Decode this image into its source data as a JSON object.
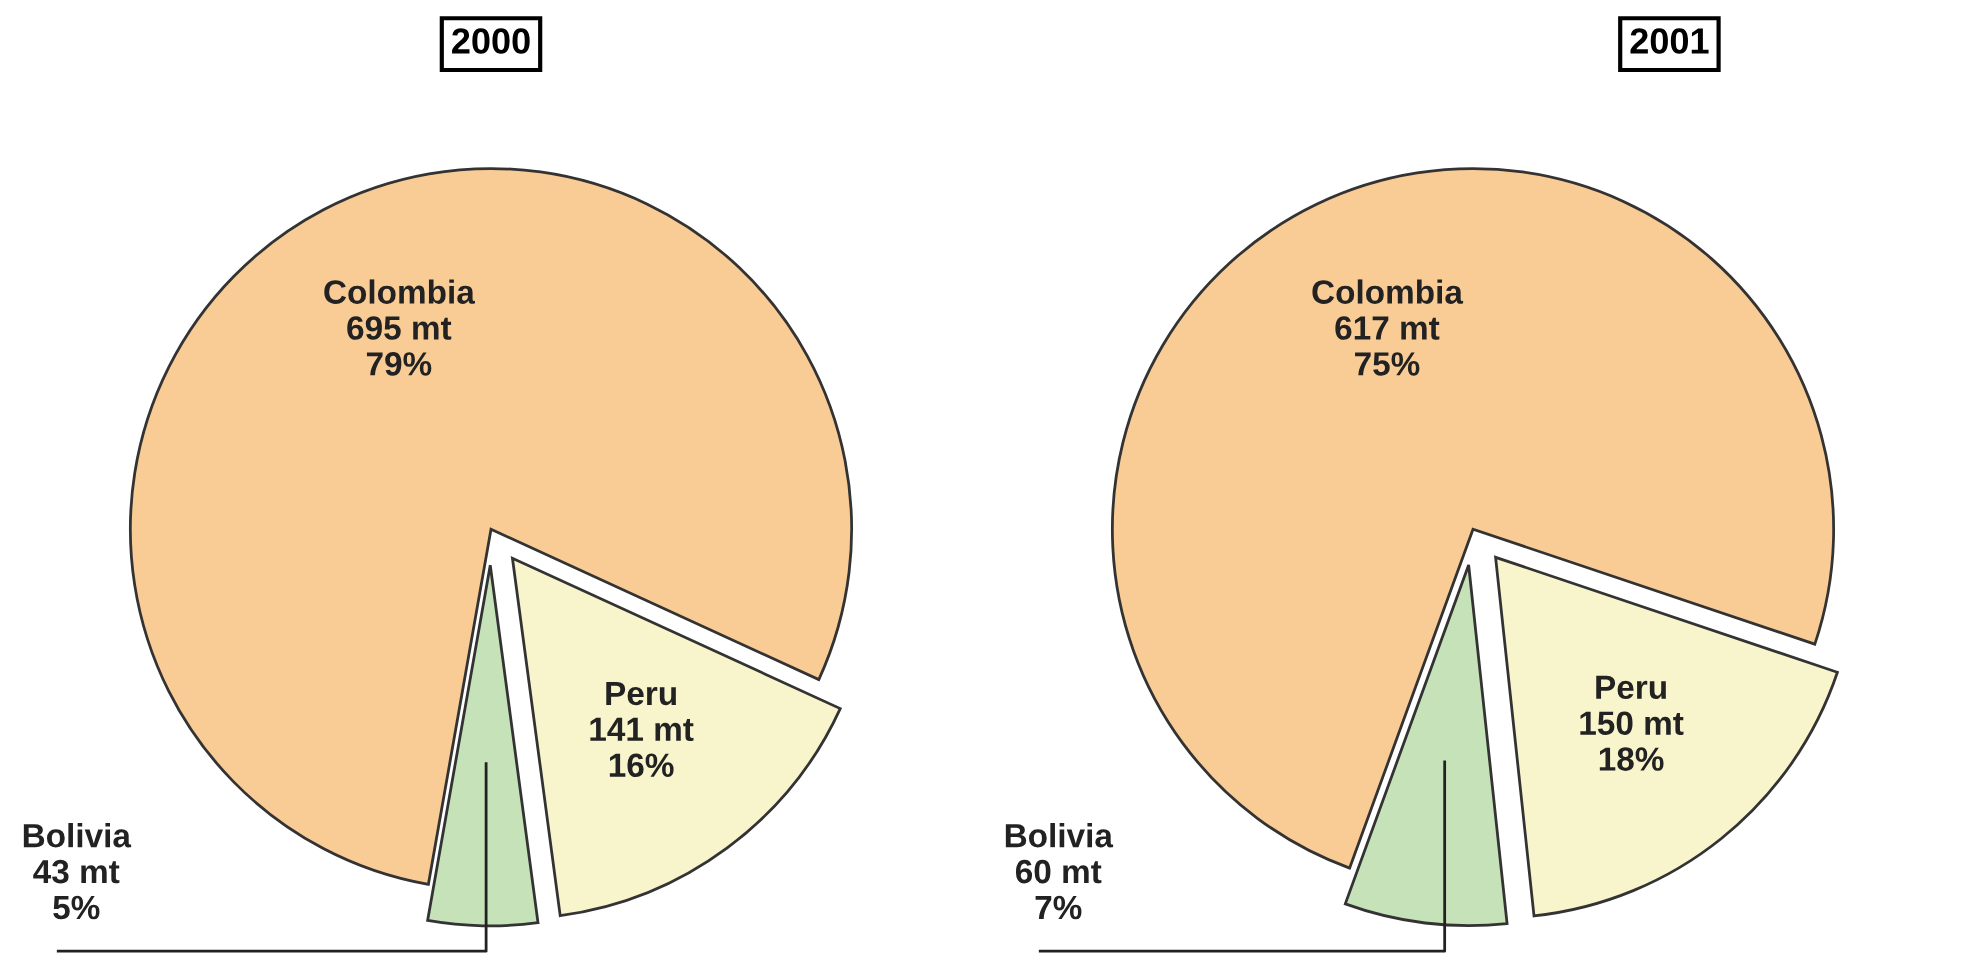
{
  "chart_data": [
    {
      "type": "pie",
      "title": "2000",
      "categories": [
        "Colombia",
        "Peru",
        "Bolivia"
      ],
      "values": [
        695,
        141,
        43
      ],
      "value_labels": [
        "695 mt\n79%",
        "141 mt\n16%",
        "43 mt\n5%"
      ],
      "colors": [
        "#f9cc96",
        "#f8f4cc",
        "#c5e2b8"
      ]
    },
    {
      "type": "pie",
      "title": "2001",
      "categories": [
        "Colombia",
        "Peru",
        "Bolivia"
      ],
      "values": [
        617,
        150,
        60
      ],
      "value_labels": [
        "617 mt\n75%",
        "150 mt\n18%",
        "60 mt\n7%"
      ],
      "colors": [
        "#f9cc96",
        "#f8f4cc",
        "#c5e2b8"
      ]
    }
  ]
}
